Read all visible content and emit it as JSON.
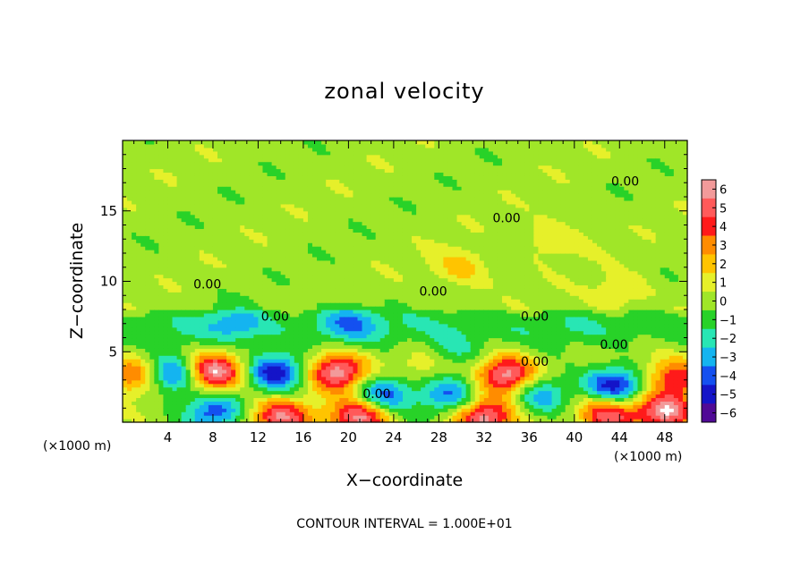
{
  "chart_data": {
    "type": "heatmap",
    "title": "zonal velocity",
    "xlabel": "X−coordinate",
    "ylabel": "Z−coordinate",
    "x_unit_label": "(×1000 m)",
    "x_unit_label_right": "(×1000 m)",
    "x_ticks": [
      4,
      8,
      12,
      16,
      20,
      24,
      28,
      32,
      36,
      40,
      44,
      48
    ],
    "y_ticks": [
      5,
      10,
      15
    ],
    "xlim": [
      0,
      50
    ],
    "ylim": [
      0,
      20
    ],
    "footnote": "CONTOUR INTERVAL = 1.000E+01",
    "contour_labels": [
      {
        "text": "0.00",
        "x": 44.5,
        "y": 16.8
      },
      {
        "text": "0.00",
        "x": 34.0,
        "y": 14.2
      },
      {
        "text": "0.00",
        "x": 7.5,
        "y": 9.5
      },
      {
        "text": "0.00",
        "x": 13.5,
        "y": 7.2
      },
      {
        "text": "0.00",
        "x": 27.5,
        "y": 9.0
      },
      {
        "text": "0.00",
        "x": 36.5,
        "y": 7.2
      },
      {
        "text": "0.00",
        "x": 36.5,
        "y": 4.0
      },
      {
        "text": "0.00",
        "x": 43.5,
        "y": 5.2
      },
      {
        "text": "0.00",
        "x": 22.5,
        "y": 1.7
      }
    ],
    "colorbar": {
      "ticks": [
        6,
        5,
        4,
        3,
        2,
        1,
        0,
        -1,
        -2,
        -3,
        -4,
        -5,
        -6
      ],
      "tick_labels": [
        "6",
        "5",
        "4",
        "3",
        "2",
        "1",
        "0",
        "−1",
        "−2",
        "−3",
        "−4",
        "−5",
        "−6"
      ],
      "colors": [
        "#f29a9a",
        "#ff5a5a",
        "#ff1a1a",
        "#ff8c00",
        "#ffc400",
        "#e6f02a",
        "#a0e628",
        "#28d228",
        "#28e6b4",
        "#14b4f0",
        "#1450f0",
        "#1414c8",
        "#500a96"
      ]
    },
    "anomalies": [
      {
        "x": 8.0,
        "y": 3.6,
        "v": 6.5
      },
      {
        "x": 19.0,
        "y": 3.6,
        "v": 6.5
      },
      {
        "x": 34.0,
        "y": 3.4,
        "v": 6.5
      },
      {
        "x": 4.5,
        "y": 3.4,
        "v": -5.0
      },
      {
        "x": 13.5,
        "y": 3.6,
        "v": -5.0
      },
      {
        "x": 43.5,
        "y": 2.6,
        "v": -5.5
      },
      {
        "x": 23.0,
        "y": 2.0,
        "v": -4.5
      },
      {
        "x": 29.0,
        "y": 2.0,
        "v": -3.5
      },
      {
        "x": 37.0,
        "y": 2.0,
        "v": -3.5
      },
      {
        "x": 8.0,
        "y": 0.8,
        "v": -4.0
      },
      {
        "x": 14.0,
        "y": 0.4,
        "v": 5.5
      },
      {
        "x": 21.0,
        "y": 0.4,
        "v": 6.0
      },
      {
        "x": 32.0,
        "y": 0.4,
        "v": 6.0
      },
      {
        "x": 43.0,
        "y": 0.6,
        "v": 5.5
      },
      {
        "x": 48.0,
        "y": 0.8,
        "v": 6.0
      },
      {
        "x": 1.0,
        "y": 3.4,
        "v": 4.0
      },
      {
        "x": 49.0,
        "y": 3.2,
        "v": 4.5
      },
      {
        "x": 27.0,
        "y": 4.2,
        "v": 1.5
      },
      {
        "x": 29.0,
        "y": 5.0,
        "v": -2.0
      },
      {
        "x": 30.0,
        "y": 11.0,
        "v": 2.0
      },
      {
        "x": 38.0,
        "y": 13.0,
        "v": 1.5
      },
      {
        "x": 20.0,
        "y": 7.2,
        "v": -2.5
      },
      {
        "x": 10.0,
        "y": 7.0,
        "v": -2.0
      },
      {
        "x": 44.0,
        "y": 9.2,
        "v": 1.5
      }
    ]
  }
}
